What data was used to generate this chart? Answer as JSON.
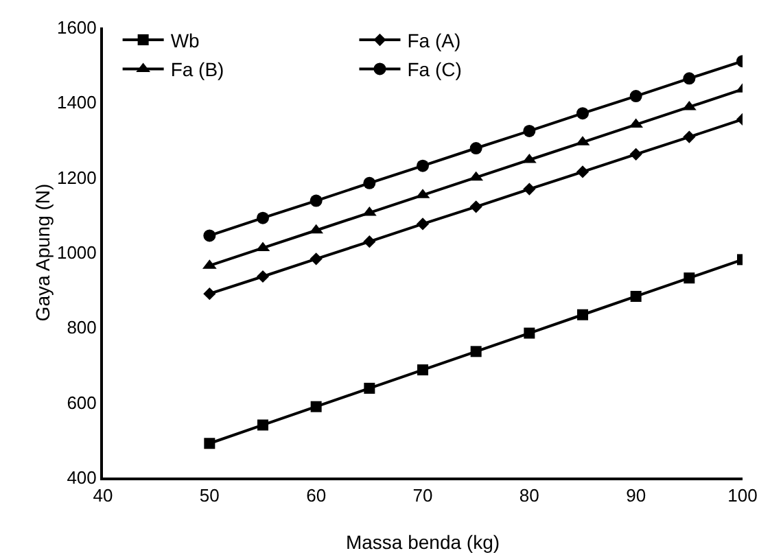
{
  "chart_data": {
    "type": "line",
    "xlabel": "Massa benda (kg)",
    "ylabel": "Gaya Apung (N)",
    "x": [
      50,
      55,
      60,
      65,
      70,
      75,
      80,
      85,
      90,
      95,
      100
    ],
    "series": [
      {
        "name": "Wb",
        "color": "#000000",
        "marker": "square",
        "values": [
          491,
          540,
          589,
          638,
          687,
          736,
          785,
          834,
          883,
          932,
          981
        ]
      },
      {
        "name": "Fa (A)",
        "color": "#000000",
        "marker": "diamond",
        "values": [
          890,
          936,
          983,
          1029,
          1076,
          1122,
          1169,
          1215,
          1262,
          1308,
          1355
        ]
      },
      {
        "name": "Fa (B)",
        "color": "#000000",
        "marker": "triangle",
        "values": [
          965,
          1012,
          1059,
          1106,
          1153,
          1200,
          1247,
          1294,
          1341,
          1388,
          1435
        ]
      },
      {
        "name": "Fa (C)",
        "color": "#000000",
        "marker": "circle",
        "values": [
          1045,
          1092,
          1138,
          1185,
          1231,
          1278,
          1324,
          1371,
          1417,
          1464,
          1510
        ]
      }
    ],
    "xlim": [
      40,
      100
    ],
    "xticks": [
      40,
      50,
      60,
      70,
      80,
      90,
      100
    ],
    "ylim": [
      400,
      1600
    ],
    "yticks": [
      400,
      600,
      800,
      1000,
      1200,
      1400,
      1600
    ],
    "grid": false,
    "legend": "top left",
    "line_style": "solid"
  }
}
